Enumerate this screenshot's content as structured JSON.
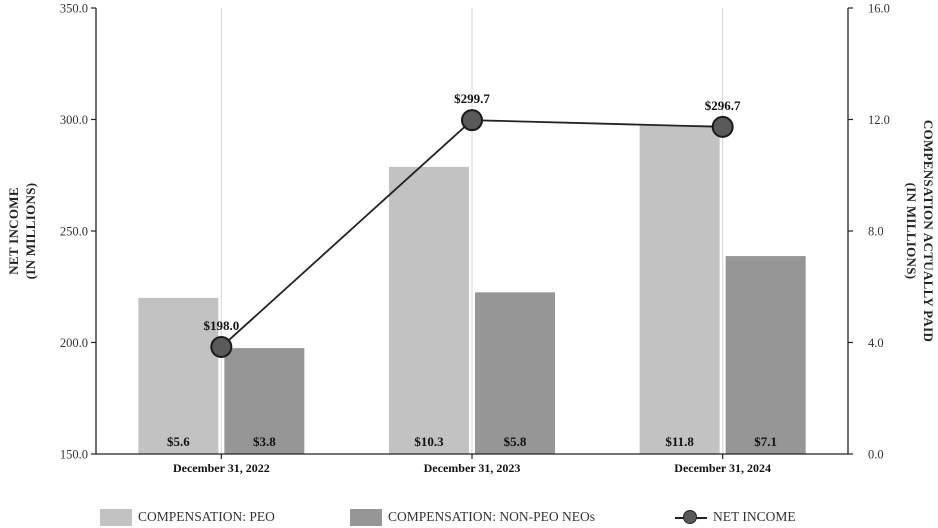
{
  "chart_data": {
    "type": "bar+line",
    "categories": [
      "December 31, 2022",
      "December 31, 2023",
      "December 31, 2024"
    ],
    "series": [
      {
        "name": "COMPENSATION: PEO",
        "axis": "right",
        "values": [
          5.6,
          10.3,
          11.8
        ],
        "labels": [
          "$5.6",
          "$10.3",
          "$11.8"
        ],
        "color": "#c2c2c2"
      },
      {
        "name": "COMPENSATION: NON-PEO NEOs",
        "axis": "right",
        "values": [
          3.8,
          5.8,
          7.1
        ],
        "labels": [
          "$3.8",
          "$5.8",
          "$7.1"
        ],
        "color": "#979697"
      },
      {
        "name": "NET INCOME",
        "axis": "left",
        "values": [
          198.0,
          299.7,
          296.7
        ],
        "labels": [
          "$198.0",
          "$299.7",
          "$296.7"
        ],
        "color": "#5a5a5a"
      }
    ],
    "left_axis": {
      "title_line1": "NET INCOME",
      "title_line2": "(IN MILLIONS)",
      "min": 150,
      "max": 350,
      "ticks": [
        "150.0",
        "200.0",
        "250.0",
        "300.0",
        "350.0"
      ],
      "tick_values": [
        150,
        200,
        250,
        300,
        350
      ]
    },
    "right_axis": {
      "title_line1": "COMPENSATION ACTUALLY PAID",
      "title_line2": "(IN MILLIONS)",
      "min": 0,
      "max": 16,
      "ticks": [
        "0.0",
        "4.0",
        "8.0",
        "12.0",
        "16.0"
      ],
      "tick_values": [
        0,
        4,
        8,
        12,
        16
      ]
    },
    "grid": "vertical"
  },
  "legend": {
    "peo": "COMPENSATION: PEO",
    "non_peo": "COMPENSATION: NON-PEO NEOs",
    "net_income": "NET INCOME"
  }
}
